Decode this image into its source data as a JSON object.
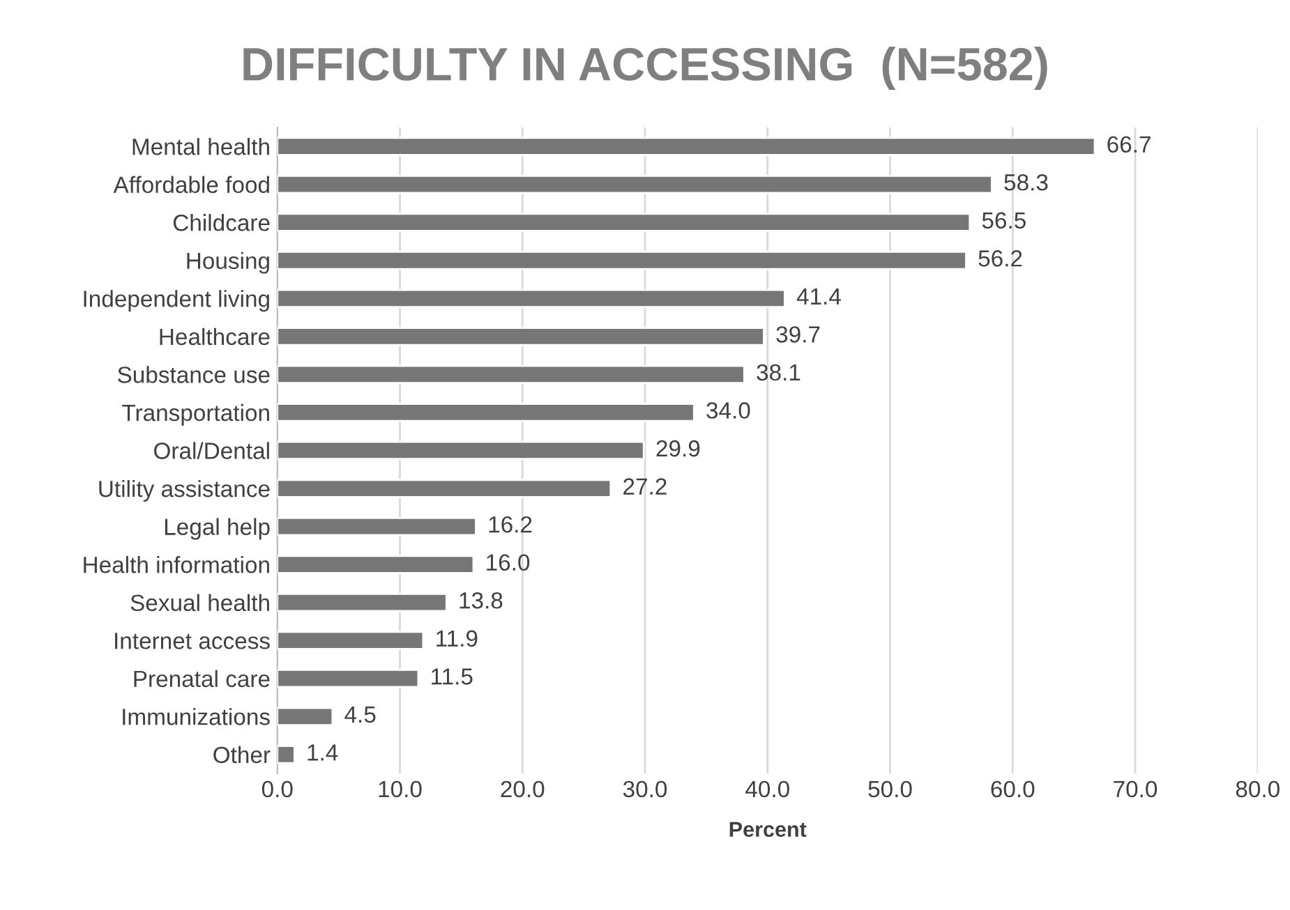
{
  "chart_data": {
    "type": "bar",
    "orientation": "horizontal",
    "title": "DIFFICULTY IN ACCESSING  (N=582)",
    "xlabel": "Percent",
    "categories": [
      "Mental health",
      "Affordable food",
      "Childcare",
      "Housing",
      "Independent living",
      "Healthcare",
      "Substance use",
      "Transportation",
      "Oral/Dental",
      "Utility assistance",
      "Legal help",
      "Health information",
      "Sexual health",
      "Internet access",
      "Prenatal care",
      "Immunizations",
      "Other"
    ],
    "values": [
      66.7,
      58.3,
      56.5,
      56.2,
      41.4,
      39.7,
      38.1,
      34.0,
      29.9,
      27.2,
      16.2,
      16.0,
      13.8,
      11.9,
      11.5,
      4.5,
      1.4
    ],
    "value_labels": [
      "66.7",
      "58.3",
      "56.5",
      "56.2",
      "41.4",
      "39.7",
      "38.1",
      "34.0",
      "29.9",
      "27.2",
      "16.2",
      "16.0",
      "13.8",
      "11.9",
      "11.5",
      "4.5",
      "1.4"
    ],
    "color": "#767676",
    "xlim": [
      0,
      80
    ],
    "xticks": [
      {
        "value": 0,
        "label": "0.0"
      },
      {
        "value": 10,
        "label": "10.0"
      },
      {
        "value": 20,
        "label": "20.0"
      },
      {
        "value": 30,
        "label": "30.0"
      },
      {
        "value": 40,
        "label": "40.0"
      },
      {
        "value": 50,
        "label": "50.0"
      },
      {
        "value": 60,
        "label": "60.0"
      },
      {
        "value": 70,
        "label": "70.0"
      },
      {
        "value": 80,
        "label": "80.0"
      }
    ],
    "grid": "x",
    "legend": false
  }
}
